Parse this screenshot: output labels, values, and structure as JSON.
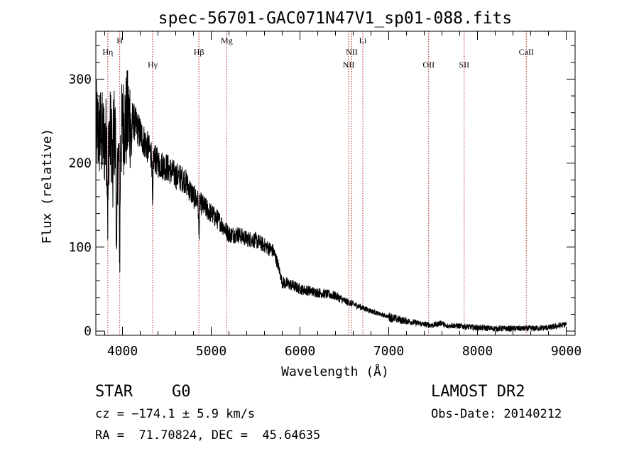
{
  "chart_data": {
    "type": "line",
    "title": "spec-56701-GAC071N47V1_sp01-088.fits",
    "xlabel": "Wavelength (Å)",
    "ylabel": "Flux (relative)",
    "xlim": [
      3700,
      9100
    ],
    "ylim": [
      -5,
      357
    ],
    "xticks": [
      4000,
      5000,
      6000,
      7000,
      8000,
      9000
    ],
    "yticks": [
      0,
      100,
      200,
      300
    ],
    "grid": false,
    "line_color": "#000000",
    "marker_color": "#b22222",
    "continuum": [
      [
        3700,
        240
      ],
      [
        3750,
        235
      ],
      [
        3800,
        225
      ],
      [
        3850,
        230
      ],
      [
        3900,
        240
      ],
      [
        3950,
        200
      ],
      [
        4000,
        245
      ],
      [
        4050,
        250
      ],
      [
        4100,
        255
      ],
      [
        4150,
        245
      ],
      [
        4200,
        235
      ],
      [
        4300,
        215
      ],
      [
        4400,
        200
      ],
      [
        4500,
        195
      ],
      [
        4600,
        185
      ],
      [
        4700,
        180
      ],
      [
        4800,
        160
      ],
      [
        4900,
        150
      ],
      [
        5000,
        140
      ],
      [
        5100,
        130
      ],
      [
        5200,
        115
      ],
      [
        5300,
        115
      ],
      [
        5400,
        110
      ],
      [
        5500,
        108
      ],
      [
        5600,
        102
      ],
      [
        5700,
        95
      ],
      [
        5750,
        80
      ],
      [
        5800,
        58
      ],
      [
        5900,
        55
      ],
      [
        6000,
        50
      ],
      [
        6100,
        48
      ],
      [
        6200,
        46
      ],
      [
        6300,
        44
      ],
      [
        6400,
        42
      ],
      [
        6500,
        36
      ],
      [
        6600,
        32
      ],
      [
        6700,
        28
      ],
      [
        6800,
        24
      ],
      [
        6900,
        20
      ],
      [
        7000,
        17
      ],
      [
        7100,
        14
      ],
      [
        7200,
        12
      ],
      [
        7300,
        10
      ],
      [
        7400,
        8
      ],
      [
        7500,
        7
      ],
      [
        7600,
        10
      ],
      [
        7650,
        5
      ],
      [
        7700,
        7
      ],
      [
        7800,
        6
      ],
      [
        8000,
        4
      ],
      [
        8200,
        3
      ],
      [
        8400,
        3
      ],
      [
        8600,
        3
      ],
      [
        8800,
        4
      ],
      [
        8900,
        6
      ],
      [
        9000,
        8
      ]
    ],
    "absorption_features": [
      {
        "wavelength": 3835,
        "depth": 90
      },
      {
        "wavelength": 3889,
        "depth": 70
      },
      {
        "wavelength": 3934,
        "depth": 150
      },
      {
        "wavelength": 3969,
        "depth": 120
      },
      {
        "wavelength": 4101,
        "depth": 40
      },
      {
        "wavelength": 4340,
        "depth": 70
      },
      {
        "wavelength": 4861,
        "depth": 40
      }
    ],
    "line_markers": [
      {
        "label": "Hη",
        "wavelength": 3835,
        "row": 1
      },
      {
        "label": "H",
        "wavelength": 3969,
        "row": 0
      },
      {
        "label": "Hγ",
        "wavelength": 4340,
        "row": 2
      },
      {
        "label": "Hβ",
        "wavelength": 4861,
        "row": 1
      },
      {
        "label": "Mg",
        "wavelength": 5175,
        "row": 0
      },
      {
        "label": "NII",
        "wavelength": 6548,
        "row": 2
      },
      {
        "label": "NII",
        "wavelength": 6584,
        "row": 1
      },
      {
        "label": "Li",
        "wavelength": 6708,
        "row": 0
      },
      {
        "label": "OII",
        "wavelength": 7450,
        "row": 2
      },
      {
        "label": "SII",
        "wavelength": 7850,
        "row": 2
      },
      {
        "label": "CaII",
        "wavelength": 8550,
        "row": 1
      }
    ]
  },
  "info": {
    "class_label": "STAR",
    "subclass": "G0",
    "survey": "LAMOST DR2",
    "cz_text": "cz = −174.1 ± 5.9 km/s",
    "obs_date": "Obs-Date: 20140212",
    "coords": "RA =  71.70824, DEC =  45.64635"
  }
}
